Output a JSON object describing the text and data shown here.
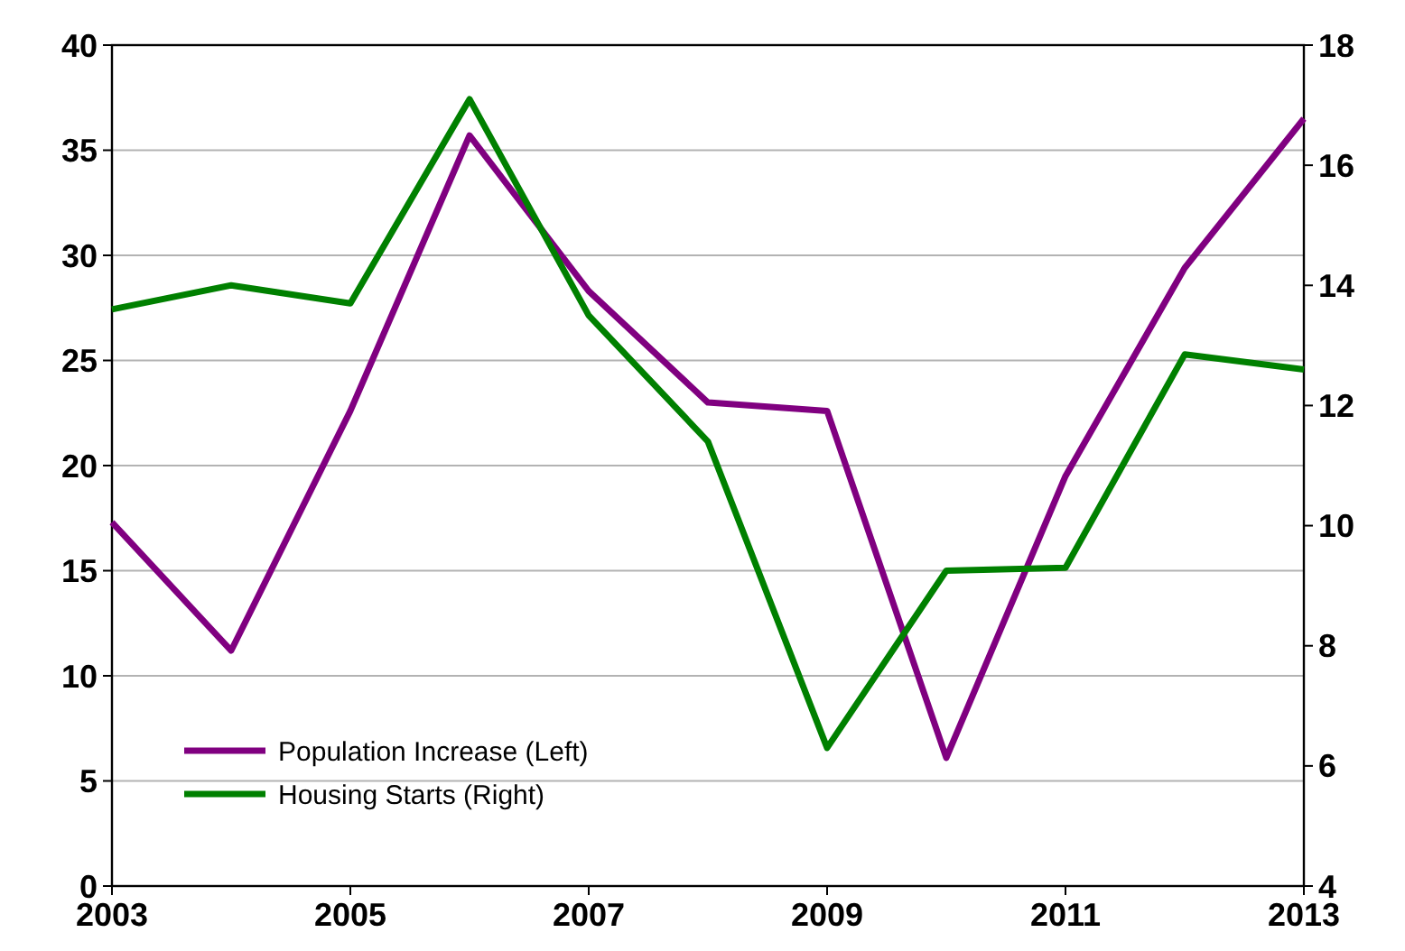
{
  "chart_data": {
    "type": "line",
    "x": [
      2003,
      2004,
      2005,
      2006,
      2007,
      2008,
      2009,
      2010,
      2011,
      2012,
      2013
    ],
    "series": [
      {
        "name": "Population Increase (Left)",
        "color": "#800080",
        "values": [
          17.3,
          11.2,
          22.6,
          35.7,
          28.3,
          23.0,
          22.6,
          6.1,
          19.5,
          29.4,
          36.5
        ]
      },
      {
        "name": "Housing Starts (Right)",
        "color": "#008000",
        "axis": "y2",
        "values": [
          13.6,
          14.0,
          13.7,
          17.1,
          13.5,
          11.4,
          6.3,
          9.25,
          9.3,
          12.85,
          12.6
        ]
      }
    ],
    "xlim": [
      2003,
      2013
    ],
    "xticks": [
      2003,
      2005,
      2007,
      2009,
      2011,
      2013
    ],
    "ylim": [
      0,
      40
    ],
    "yticks": [
      0,
      5,
      10,
      15,
      20,
      25,
      30,
      35,
      40
    ],
    "y2lim": [
      4,
      18
    ],
    "y2ticks": [
      4,
      6,
      8,
      10,
      12,
      14,
      16,
      18
    ],
    "grid": "y",
    "legend": "bottom left",
    "marker": "none",
    "line_style": "solid"
  }
}
